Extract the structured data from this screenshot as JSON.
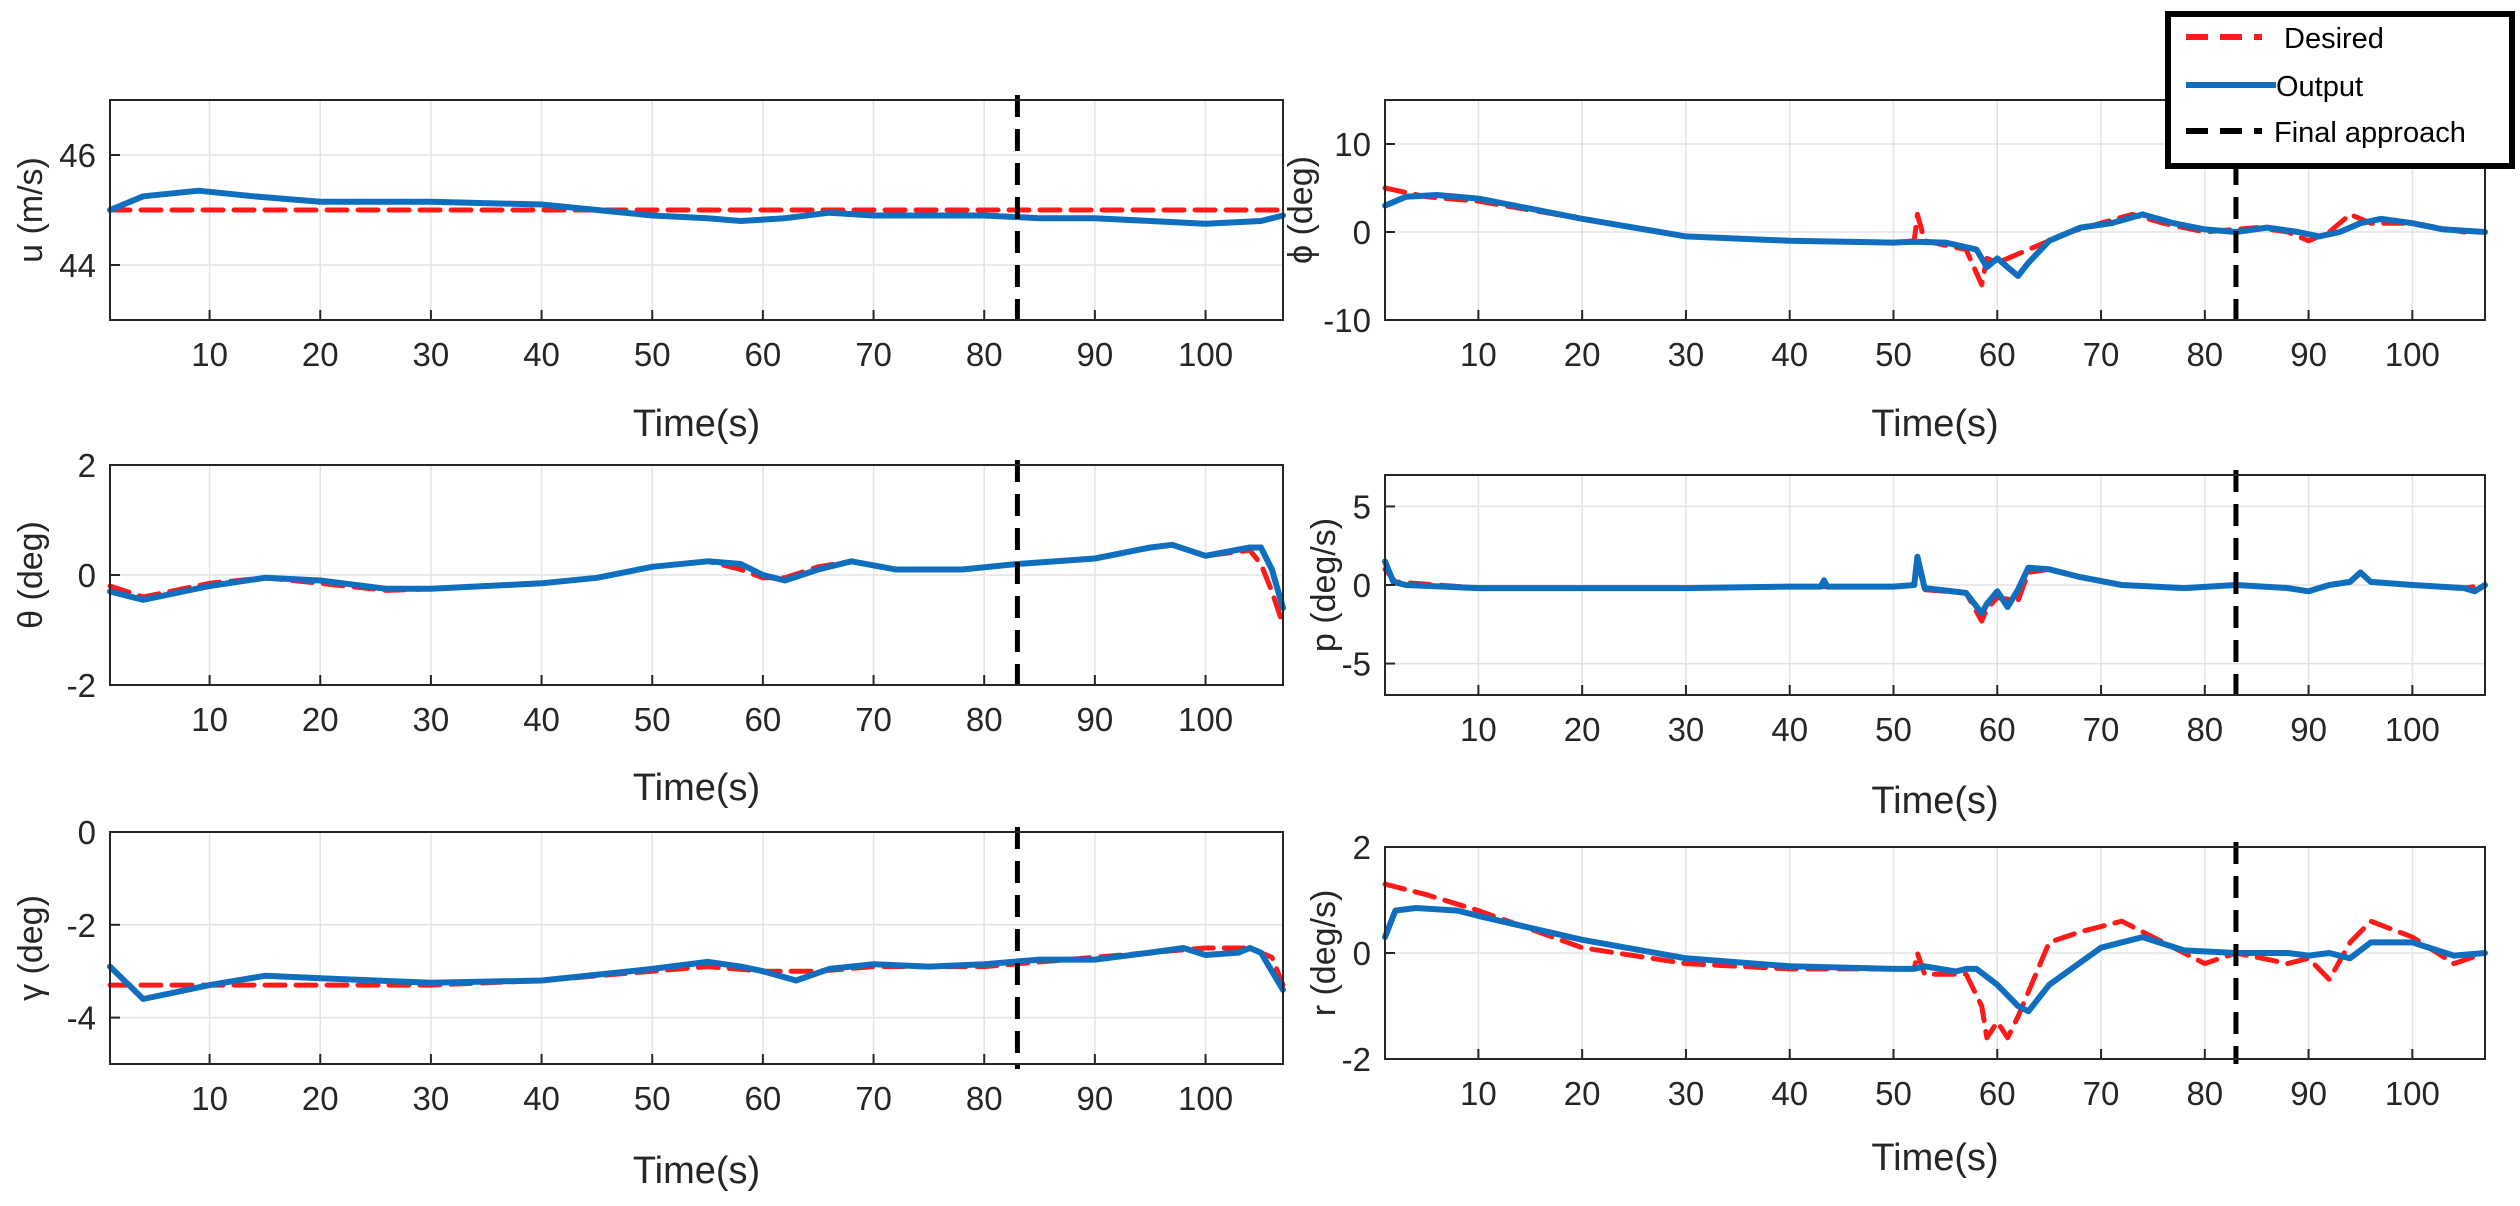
{
  "colors": {
    "desired": "#ff1a1a",
    "output": "#0f6fbe",
    "final": "#000000",
    "grid": "#e3e3e3",
    "axis": "#262626"
  },
  "legend": {
    "placement": "top-right",
    "entries": [
      "Desired",
      "Output",
      "Final approach"
    ]
  },
  "chart_data": [
    {
      "type": "line",
      "id": "u",
      "position": "top-left",
      "ylabel": "u (m/s)",
      "xlabel": "Time(s)",
      "xlim": [
        1,
        107
      ],
      "ylim": [
        43,
        47
      ],
      "xticks": [
        10,
        20,
        30,
        40,
        50,
        60,
        70,
        80,
        90,
        100
      ],
      "yticks": [
        44,
        46
      ],
      "final_approach_time": 83,
      "series": [
        {
          "name": "Desired",
          "x": [
            1,
            107
          ],
          "y": [
            45,
            45
          ]
        },
        {
          "name": "Output",
          "x": [
            1,
            4,
            9,
            14,
            20,
            30,
            40,
            50,
            55,
            58,
            62,
            66,
            70,
            75,
            80,
            85,
            90,
            95,
            100,
            105,
            107
          ],
          "y": [
            45,
            45.25,
            45.35,
            45.25,
            45.15,
            45.15,
            45.1,
            44.9,
            44.85,
            44.8,
            44.85,
            44.95,
            44.9,
            44.9,
            44.9,
            44.85,
            44.85,
            44.8,
            44.75,
            44.8,
            44.9
          ]
        }
      ]
    },
    {
      "type": "line",
      "id": "phi",
      "position": "top-right",
      "ylabel": "ϕ (deg)",
      "xlabel": "Time(s)",
      "xlim": [
        1,
        107
      ],
      "ylim": [
        -10,
        15
      ],
      "xticks": [
        10,
        20,
        30,
        40,
        50,
        60,
        70,
        80,
        90,
        100
      ],
      "yticks": [
        -10,
        0,
        10
      ],
      "final_approach_time": 83,
      "series": [
        {
          "name": "Desired",
          "x": [
            1,
            5,
            10,
            20,
            30,
            40,
            50,
            52,
            52.3,
            53,
            57,
            58.5,
            59,
            60,
            63,
            67,
            70,
            73,
            76,
            80,
            85,
            88,
            90,
            92,
            94,
            96,
            100,
            105,
            107
          ],
          "y": [
            5,
            4,
            3.5,
            1.5,
            -0.5,
            -1,
            -1.2,
            -1,
            2,
            -1,
            -2,
            -6,
            -3,
            -3.5,
            -2,
            0,
            1,
            2,
            1,
            0,
            0.5,
            0,
            -1,
            0,
            2,
            1,
            1,
            0,
            0
          ]
        },
        {
          "name": "Output",
          "x": [
            1,
            3,
            6,
            10,
            20,
            30,
            40,
            50,
            52,
            55,
            58,
            59,
            60,
            61,
            62,
            63,
            65,
            68,
            71,
            74,
            77,
            80,
            83,
            86,
            89,
            91,
            93,
            95,
            97,
            100,
            103,
            107
          ],
          "y": [
            3,
            4,
            4.2,
            3.8,
            1.5,
            -0.5,
            -1,
            -1.2,
            -1.1,
            -1.2,
            -2,
            -4,
            -3,
            -4,
            -5,
            -3.5,
            -1,
            0.5,
            1,
            2,
            1,
            0.3,
            0,
            0.5,
            0,
            -0.5,
            0,
            1,
            1.5,
            1,
            0.3,
            0
          ]
        }
      ]
    },
    {
      "type": "line",
      "id": "theta",
      "position": "middle-left",
      "ylabel": "θ (deg)",
      "xlabel": "Time(s)",
      "xlim": [
        1,
        107
      ],
      "ylim": [
        -2,
        2
      ],
      "xticks": [
        10,
        20,
        30,
        40,
        50,
        60,
        70,
        80,
        90,
        100
      ],
      "yticks": [
        -2,
        0,
        2
      ],
      "final_approach_time": 83,
      "series": [
        {
          "name": "Desired",
          "x": [
            1,
            4,
            10,
            15,
            20,
            26,
            30,
            40,
            45,
            50,
            55,
            58,
            60,
            62,
            65,
            68,
            72,
            78,
            83,
            90,
            95,
            97,
            100,
            104,
            105,
            106,
            107
          ],
          "y": [
            -0.2,
            -0.4,
            -0.15,
            -0.05,
            -0.15,
            -0.28,
            -0.25,
            -0.15,
            -0.05,
            0.15,
            0.25,
            0.1,
            -0.05,
            -0.05,
            0.15,
            0.25,
            0.1,
            0.1,
            0.2,
            0.3,
            0.5,
            0.55,
            0.35,
            0.45,
            0.2,
            -0.3,
            -0.9
          ]
        },
        {
          "name": "Output",
          "x": [
            1,
            4,
            10,
            15,
            20,
            26,
            30,
            40,
            45,
            50,
            55,
            58,
            60,
            62,
            65,
            68,
            72,
            78,
            83,
            90,
            95,
            97,
            100,
            104,
            105,
            106,
            107
          ],
          "y": [
            -0.3,
            -0.45,
            -0.2,
            -0.05,
            -0.1,
            -0.25,
            -0.25,
            -0.15,
            -0.05,
            0.15,
            0.25,
            0.2,
            0,
            -0.1,
            0.1,
            0.25,
            0.1,
            0.1,
            0.2,
            0.3,
            0.5,
            0.55,
            0.35,
            0.5,
            0.5,
            0.1,
            -0.6
          ]
        }
      ]
    },
    {
      "type": "line",
      "id": "p",
      "position": "middle-right",
      "ylabel": "p (deg/s)",
      "xlabel": "Time(s)",
      "xlim": [
        1,
        107
      ],
      "ylim": [
        -7,
        7
      ],
      "xticks": [
        10,
        20,
        30,
        40,
        50,
        60,
        70,
        80,
        90,
        100
      ],
      "yticks": [
        -5,
        0,
        5
      ],
      "final_approach_time": 83,
      "series": [
        {
          "name": "Desired",
          "x": [
            1,
            2,
            10,
            20,
            30,
            40,
            50,
            52,
            52.3,
            53,
            57,
            58.5,
            59,
            60,
            62,
            63,
            65,
            68,
            72,
            78,
            83,
            88,
            90,
            92,
            94,
            95,
            96,
            100,
            105,
            107
          ],
          "y": [
            1,
            0.2,
            -0.2,
            -0.2,
            -0.2,
            -0.1,
            -0.1,
            0,
            1.5,
            -0.3,
            -0.5,
            -2.3,
            -1.5,
            -0.8,
            -1,
            0.8,
            1,
            0.5,
            0,
            -0.2,
            0,
            -0.2,
            -0.4,
            0,
            0.2,
            0.8,
            0.2,
            0,
            -0.2,
            0
          ]
        },
        {
          "name": "Output",
          "x": [
            1,
            1.8,
            3,
            10,
            20,
            30,
            40,
            43,
            43.3,
            43.6,
            50,
            52,
            52.3,
            53,
            57,
            58.5,
            59,
            60,
            61,
            62,
            63,
            65,
            68,
            72,
            78,
            83,
            88,
            90,
            92,
            94,
            95,
            96,
            100,
            105,
            106,
            107
          ],
          "y": [
            1.5,
            0.2,
            0,
            -0.2,
            -0.2,
            -0.2,
            -0.1,
            -0.1,
            0.3,
            -0.1,
            -0.1,
            0,
            1.8,
            -0.2,
            -0.5,
            -1.8,
            -1.2,
            -0.4,
            -1.4,
            -0.3,
            1.1,
            1,
            0.5,
            0,
            -0.2,
            0,
            -0.2,
            -0.4,
            0,
            0.2,
            0.8,
            0.2,
            0,
            -0.2,
            -0.4,
            0
          ]
        }
      ]
    },
    {
      "type": "line",
      "id": "gamma",
      "position": "bottom-left",
      "ylabel": "γ (deg)",
      "xlabel": "Time(s)",
      "xlim": [
        1,
        107
      ],
      "ylim": [
        -5,
        0
      ],
      "xticks": [
        10,
        20,
        30,
        40,
        50,
        60,
        70,
        80,
        90,
        100
      ],
      "yticks": [
        -4,
        -2,
        0
      ],
      "final_approach_time": 83,
      "series": [
        {
          "name": "Desired",
          "x": [
            1,
            10,
            20,
            30,
            40,
            50,
            55,
            60,
            65,
            70,
            80,
            90,
            95,
            100,
            104,
            106,
            107
          ],
          "y": [
            -3.3,
            -3.3,
            -3.3,
            -3.3,
            -3.2,
            -3,
            -2.9,
            -3,
            -3,
            -2.9,
            -2.9,
            -2.7,
            -2.6,
            -2.5,
            -2.5,
            -2.7,
            -3.3
          ]
        },
        {
          "name": "Output",
          "x": [
            1,
            4,
            10,
            15,
            20,
            30,
            40,
            50,
            55,
            58,
            60,
            63,
            66,
            70,
            75,
            80,
            85,
            90,
            95,
            98,
            100,
            103,
            104,
            105,
            106,
            107
          ],
          "y": [
            -2.9,
            -3.6,
            -3.3,
            -3.1,
            -3.15,
            -3.25,
            -3.2,
            -2.95,
            -2.8,
            -2.9,
            -3,
            -3.2,
            -2.95,
            -2.85,
            -2.9,
            -2.85,
            -2.75,
            -2.75,
            -2.6,
            -2.5,
            -2.65,
            -2.6,
            -2.5,
            -2.6,
            -3,
            -3.4
          ]
        }
      ]
    },
    {
      "type": "line",
      "id": "r",
      "position": "bottom-right",
      "ylabel": "r (deg/s)",
      "xlabel": "Time(s)",
      "xlim": [
        1,
        107
      ],
      "ylim": [
        -2,
        2
      ],
      "xticks": [
        10,
        20,
        30,
        40,
        50,
        60,
        70,
        80,
        90,
        100
      ],
      "yticks": [
        -2,
        0,
        2
      ],
      "final_approach_time": 83,
      "series": [
        {
          "name": "Desired",
          "x": [
            1,
            5,
            10,
            20,
            30,
            40,
            50,
            52,
            52.3,
            53,
            57,
            58.5,
            59,
            60,
            61,
            62,
            65,
            68,
            72,
            75,
            78,
            80,
            83,
            88,
            90,
            92,
            94,
            96,
            100,
            104,
            107
          ],
          "y": [
            1.3,
            1.1,
            0.8,
            0.1,
            -0.2,
            -0.3,
            -0.3,
            -0.3,
            0,
            -0.4,
            -0.4,
            -1,
            -1.6,
            -1.3,
            -1.6,
            -1.2,
            0.2,
            0.4,
            0.6,
            0.3,
            0,
            -0.2,
            0,
            -0.2,
            -0.1,
            -0.5,
            0.2,
            0.6,
            0.3,
            -0.2,
            0
          ]
        },
        {
          "name": "Output",
          "x": [
            1,
            2,
            4,
            8,
            10,
            20,
            30,
            40,
            50,
            52,
            53,
            56,
            57,
            58,
            60,
            62,
            63,
            65,
            70,
            74,
            78,
            83,
            88,
            90,
            92,
            94,
            96,
            100,
            104,
            107
          ],
          "y": [
            0.3,
            0.8,
            0.85,
            0.8,
            0.7,
            0.25,
            -0.1,
            -0.25,
            -0.3,
            -0.3,
            -0.25,
            -0.35,
            -0.3,
            -0.3,
            -0.6,
            -1,
            -1.1,
            -0.6,
            0.1,
            0.3,
            0.05,
            0,
            0,
            -0.05,
            0,
            -0.1,
            0.2,
            0.2,
            -0.05,
            0
          ]
        }
      ]
    }
  ]
}
